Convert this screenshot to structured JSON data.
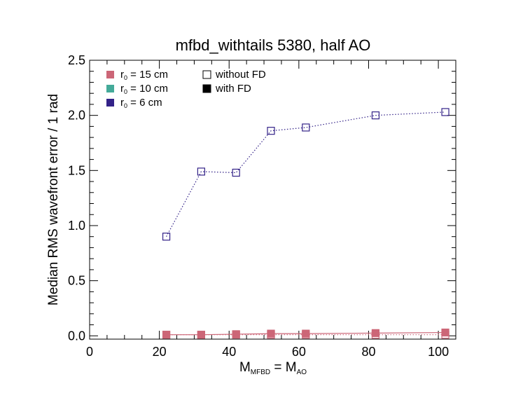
{
  "chart_data": {
    "type": "scatter",
    "title": "mfbd_withtails 5380, half AO",
    "xlabel": {
      "main": "M",
      "sub": "MFBD",
      "eq": " = M",
      "sub2": "AO"
    },
    "ylabel": "Median RMS wavefront error / 1 rad",
    "xlim": [
      0,
      105
    ],
    "ylim": [
      -0.03,
      2.5
    ],
    "xticks": [
      0,
      20,
      40,
      60,
      80,
      100
    ],
    "xtick_labels": [
      "0",
      "20",
      "40",
      "60",
      "80",
      "100"
    ],
    "yticks": [
      0.0,
      0.5,
      1.0,
      1.5,
      2.0,
      2.5
    ],
    "ytick_labels": [
      "0.0",
      "0.5",
      "1.0",
      "1.5",
      "2.0",
      "2.5"
    ],
    "grid": false,
    "legend_r0": [
      {
        "prefix": "r",
        "sub": "0",
        "label": " = 15 cm",
        "color": "#cc6677"
      },
      {
        "prefix": "r",
        "sub": "0",
        "label": " = 10 cm",
        "color": "#44aa99"
      },
      {
        "prefix": "r",
        "sub": "0",
        "label": " = 6 cm",
        "color": "#332288"
      }
    ],
    "legend_fd": [
      {
        "label": "without FD",
        "filled": false
      },
      {
        "label": "with FD",
        "filled": true
      }
    ],
    "x": [
      22,
      32,
      42,
      52,
      62,
      82,
      102
    ],
    "series": [
      {
        "r0": "6 cm",
        "fd": "without FD",
        "color": "#332288",
        "filled": false,
        "values": [
          0.9,
          1.49,
          1.48,
          1.86,
          1.89,
          2.0,
          2.03
        ]
      },
      {
        "r0": "15 cm",
        "fd": "without FD",
        "color": "#cc6677",
        "filled": false,
        "values": [
          0.01,
          0.01,
          0.01,
          0.01,
          0.01,
          0.01,
          0.01
        ]
      },
      {
        "r0": "15 cm",
        "fd": "with FD",
        "color": "#cc6677",
        "filled": true,
        "values": [
          0.01,
          0.01,
          0.015,
          0.02,
          0.02,
          0.025,
          0.03
        ]
      }
    ]
  }
}
